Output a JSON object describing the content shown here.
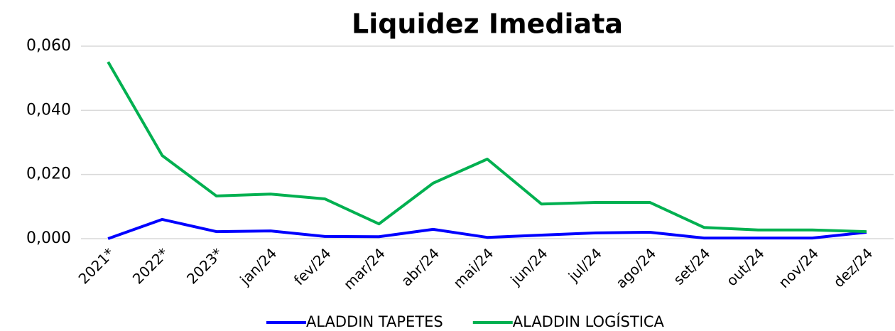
{
  "chart_data": {
    "type": "line",
    "title": "Liquidez Imediata",
    "categories": [
      "2021*",
      "2022*",
      "2023*",
      "jan/24",
      "fev/24",
      "mar/24",
      "abr/24",
      "mai/24",
      "jun/24",
      "jul/24",
      "ago/24",
      "set/24",
      "out/24",
      "nov/24",
      "dez/24"
    ],
    "series": [
      {
        "name": "ALADDIN TAPETES",
        "color": "#0000ff",
        "values": [
          0.0,
          0.006,
          0.0022,
          0.0024,
          0.0007,
          0.0006,
          0.0029,
          0.0004,
          0.0011,
          0.0018,
          0.002,
          0.0002,
          0.0002,
          0.0002,
          0.002
        ]
      },
      {
        "name": "ALADDIN LOGÍSTICA",
        "color": "#00b050",
        "values": [
          0.0551,
          0.0259,
          0.0133,
          0.0139,
          0.0124,
          0.0046,
          0.0173,
          0.0248,
          0.0108,
          0.0113,
          0.0113,
          0.0035,
          0.0027,
          0.0027,
          0.0022
        ]
      }
    ],
    "ylim": [
      0,
      0.06
    ],
    "yticks": [
      {
        "value": 0,
        "label": "0,000"
      },
      {
        "value": 0.02,
        "label": "0,020"
      },
      {
        "value": 0.04,
        "label": "0,040"
      },
      {
        "value": 0.06,
        "label": "0,060"
      }
    ],
    "grid": true,
    "legend": "bottom"
  }
}
